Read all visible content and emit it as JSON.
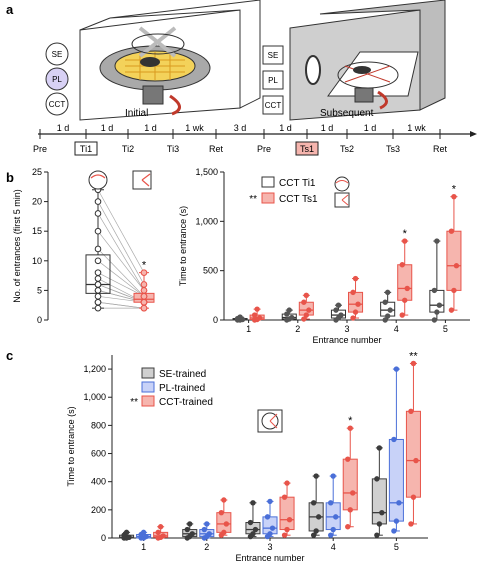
{
  "panel_labels": {
    "a": "a",
    "b": "b",
    "c": "c"
  },
  "colors": {
    "red": "#e8544a",
    "pink": "#f6b5ae",
    "blue": "#4a6fd8",
    "light_blue": "#c8d2f8",
    "grey": "#9a9a9a",
    "light_grey": "#d0d0d0",
    "dark": "#3c3c3c"
  },
  "panel_a": {
    "initial_label": "Initial",
    "subsequent_label": "Subsequent",
    "left_cues": [
      "SE",
      "PL",
      "CCT"
    ],
    "right_cues": [
      "SE",
      "PL",
      "CCT"
    ],
    "timeline_intervals": [
      "1 d",
      "1 d",
      "1 d",
      "1 wk",
      "3 d",
      "1 d",
      "1 d",
      "1 d",
      "1 wk"
    ],
    "timeline_events": [
      "Pre",
      "Ti1",
      "Ti2",
      "Ti3",
      "Ret",
      "Pre",
      "Ts1",
      "Ts2",
      "Ts3",
      "Ret"
    ]
  },
  "chart_data": [
    {
      "id": "b-left",
      "type": "box",
      "ylabel": "No. of entrances (first 5 min)",
      "yticks": [
        0,
        5,
        10,
        15,
        20,
        25
      ],
      "ylim": [
        0,
        25
      ],
      "groups": [
        {
          "key": "CCT Ti1",
          "icon": "circle-cue",
          "stats": {
            "min": 2,
            "q1": 4.5,
            "median": 6,
            "q3": 11,
            "max": 22
          },
          "points": [
            22,
            20,
            18,
            15,
            12,
            10,
            8,
            7,
            6,
            6,
            5,
            5,
            4,
            3,
            3,
            2
          ]
        },
        {
          "key": "CCT Ts1",
          "icon": "wedge-cue",
          "stats": {
            "min": 2,
            "q1": 3,
            "median": 3.5,
            "q3": 4.5,
            "max": 8
          },
          "points": [
            8,
            6,
            5,
            5,
            4,
            4,
            4,
            3,
            3,
            3,
            3,
            3,
            3,
            2,
            2,
            2
          ]
        }
      ],
      "significance": "*"
    },
    {
      "id": "b-right",
      "type": "box",
      "ylabel": "Time to entrance (s)",
      "xlabel": "Entrance number",
      "categories": [
        "1",
        "2",
        "3",
        "4",
        "5"
      ],
      "yticks": [
        0,
        500,
        1000,
        1500
      ],
      "ytick_labels": [
        "0",
        "500",
        "1,000",
        "1,500"
      ],
      "ylim": [
        0,
        1500
      ],
      "legend": [
        "CCT Ti1",
        "CCT Ts1"
      ],
      "legend_prefix": [
        "",
        "**"
      ],
      "series": [
        {
          "name": "CCT Ti1",
          "stats": [
            {
              "min": 0,
              "q1": 0,
              "median": 5,
              "q3": 15,
              "max": 30
            },
            {
              "min": 0,
              "q1": 10,
              "median": 25,
              "q3": 60,
              "max": 100
            },
            {
              "min": 0,
              "q1": 20,
              "median": 50,
              "q3": 100,
              "max": 150
            },
            {
              "min": 0,
              "q1": 40,
              "median": 100,
              "q3": 180,
              "max": 280
            },
            {
              "min": 0,
              "q1": 80,
              "median": 150,
              "q3": 300,
              "max": 800
            }
          ]
        },
        {
          "name": "CCT Ts1",
          "stats": [
            {
              "min": 0,
              "q1": 5,
              "median": 20,
              "q3": 50,
              "max": 110
            },
            {
              "min": 10,
              "q1": 50,
              "median": 100,
              "q3": 180,
              "max": 250
            },
            {
              "min": 20,
              "q1": 80,
              "median": 160,
              "q3": 280,
              "max": 420
            },
            {
              "min": 50,
              "q1": 200,
              "median": 320,
              "q3": 560,
              "max": 800
            },
            {
              "min": 100,
              "q1": 300,
              "median": 550,
              "q3": 900,
              "max": 1250
            }
          ]
        }
      ],
      "significance": [
        "",
        "",
        "",
        "*",
        "*"
      ]
    },
    {
      "id": "c",
      "type": "box",
      "ylabel": "Time to entrance (s)",
      "xlabel": "Entrance number",
      "categories": [
        "1",
        "2",
        "3",
        "4",
        "5"
      ],
      "yticks": [
        0,
        200,
        400,
        600,
        800,
        1000,
        1200
      ],
      "ytick_labels": [
        "0",
        "200",
        "400",
        "600",
        "800",
        "1,000",
        "1,200"
      ],
      "ylim": [
        0,
        1300
      ],
      "legend": [
        "SE-trained",
        "PL-trained",
        "CCT-trained"
      ],
      "legend_prefix": [
        "",
        "",
        "**"
      ],
      "series": [
        {
          "name": "SE-trained",
          "stats": [
            {
              "min": 0,
              "q1": 0,
              "median": 5,
              "q3": 20,
              "max": 40
            },
            {
              "min": 0,
              "q1": 10,
              "median": 30,
              "q3": 60,
              "max": 100
            },
            {
              "min": 10,
              "q1": 30,
              "median": 60,
              "q3": 110,
              "max": 250
            },
            {
              "min": 20,
              "q1": 50,
              "median": 150,
              "q3": 250,
              "max": 440
            },
            {
              "min": 20,
              "q1": 100,
              "median": 180,
              "q3": 420,
              "max": 640
            }
          ]
        },
        {
          "name": "PL-trained",
          "stats": [
            {
              "min": 0,
              "q1": 0,
              "median": 10,
              "q3": 25,
              "max": 40
            },
            {
              "min": 0,
              "q1": 10,
              "median": 30,
              "q3": 60,
              "max": 100
            },
            {
              "min": 10,
              "q1": 30,
              "median": 70,
              "q3": 150,
              "max": 260
            },
            {
              "min": 20,
              "q1": 60,
              "median": 150,
              "q3": 250,
              "max": 440
            },
            {
              "min": 50,
              "q1": 120,
              "median": 250,
              "q3": 700,
              "max": 1200
            }
          ]
        },
        {
          "name": "CCT-trained",
          "stats": [
            {
              "min": 0,
              "q1": 5,
              "median": 15,
              "q3": 40,
              "max": 80
            },
            {
              "min": 20,
              "q1": 40,
              "median": 100,
              "q3": 180,
              "max": 270
            },
            {
              "min": 20,
              "q1": 60,
              "median": 130,
              "q3": 290,
              "max": 390
            },
            {
              "min": 80,
              "q1": 200,
              "median": 320,
              "q3": 560,
              "max": 780
            },
            {
              "min": 100,
              "q1": 290,
              "median": 550,
              "q3": 900,
              "max": 1240
            }
          ]
        }
      ],
      "significance": [
        "",
        "",
        "",
        "*",
        "**"
      ]
    }
  ]
}
